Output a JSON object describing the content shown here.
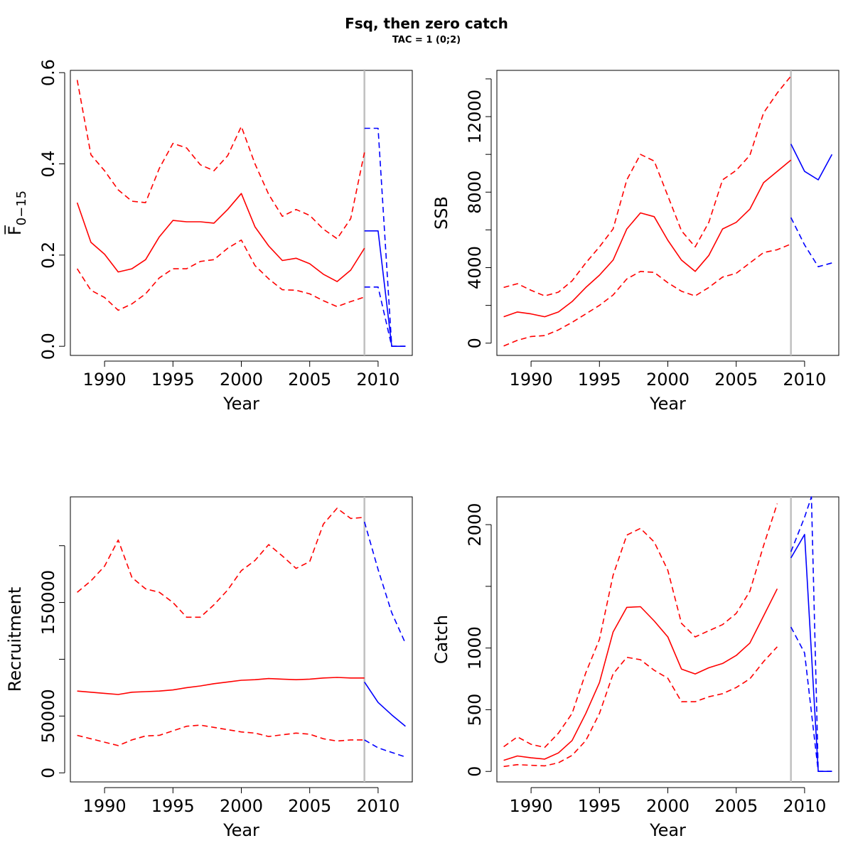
{
  "title": "Fsq, then zero catch",
  "subtitle": "TAC = 1 (0;2)",
  "colors": {
    "hist": "#ff0000",
    "proj": "#0000ff",
    "vline": "#c0c0c0"
  },
  "chart_data": [
    {
      "type": "line",
      "xlabel": "Year",
      "ylabel": "F̅",
      "ylabel_sub": "0−15",
      "xlim": [
        1987.5,
        2012.5
      ],
      "ylim": [
        -0.02,
        0.605
      ],
      "xticks": [
        1990,
        1995,
        2000,
        2005,
        2010
      ],
      "yticks": [
        0.0,
        0.2,
        0.4,
        0.6
      ],
      "ytick_labels": [
        "0.0",
        "0.2",
        "0.4",
        "0.6"
      ],
      "vline_x": 2009,
      "series": [
        {
          "role": "historic-median",
          "style": "solid",
          "color": "hist",
          "x": [
            1988,
            1989,
            1990,
            1991,
            1992,
            1993,
            1994,
            1995,
            1996,
            1997,
            1998,
            1999,
            2000,
            2001,
            2002,
            2003,
            2004,
            2005,
            2006,
            2007,
            2008,
            2009
          ],
          "y": [
            0.315,
            0.228,
            0.202,
            0.163,
            0.17,
            0.19,
            0.24,
            0.276,
            0.273,
            0.273,
            0.27,
            0.3,
            0.335,
            0.262,
            0.22,
            0.188,
            0.193,
            0.181,
            0.158,
            0.142,
            0.167,
            0.215
          ]
        },
        {
          "role": "historic-upper",
          "style": "dashed",
          "color": "hist",
          "x": [
            1988,
            1989,
            1990,
            1991,
            1992,
            1993,
            1994,
            1995,
            1996,
            1997,
            1998,
            1999,
            2000,
            2001,
            2002,
            2003,
            2004,
            2005,
            2006,
            2007,
            2008,
            2009
          ],
          "y": [
            0.584,
            0.42,
            0.385,
            0.343,
            0.318,
            0.315,
            0.39,
            0.445,
            0.435,
            0.398,
            0.385,
            0.418,
            0.482,
            0.4,
            0.333,
            0.285,
            0.3,
            0.287,
            0.257,
            0.236,
            0.28,
            0.425
          ]
        },
        {
          "role": "historic-lower",
          "style": "dashed",
          "color": "hist",
          "x": [
            1988,
            1989,
            1990,
            1991,
            1992,
            1993,
            1994,
            1995,
            1996,
            1997,
            1998,
            1999,
            2000,
            2001,
            2002,
            2003,
            2004,
            2005,
            2006,
            2007,
            2008,
            2009
          ],
          "y": [
            0.17,
            0.123,
            0.107,
            0.079,
            0.093,
            0.115,
            0.15,
            0.17,
            0.17,
            0.186,
            0.19,
            0.215,
            0.233,
            0.177,
            0.148,
            0.124,
            0.123,
            0.115,
            0.1,
            0.087,
            0.098,
            0.108
          ]
        },
        {
          "role": "projection-median",
          "style": "solid",
          "color": "proj",
          "x": [
            2009,
            2010,
            2011,
            2012
          ],
          "y": [
            0.253,
            0.253,
            0.0,
            0.0
          ]
        },
        {
          "role": "projection-upper",
          "style": "dashed",
          "color": "proj",
          "x": [
            2009,
            2010,
            2011,
            2012
          ],
          "y": [
            0.478,
            0.478,
            0.0,
            0.0
          ]
        },
        {
          "role": "projection-lower",
          "style": "dashed",
          "color": "proj",
          "x": [
            2009,
            2010,
            2011,
            2012
          ],
          "y": [
            0.13,
            0.13,
            0.0,
            0.0
          ]
        }
      ]
    },
    {
      "type": "line",
      "xlabel": "Year",
      "ylabel": "SSB",
      "xlim": [
        1987.5,
        2012.5
      ],
      "ylim": [
        -650,
        14450
      ],
      "xticks": [
        1990,
        1995,
        2000,
        2005,
        2010
      ],
      "yticks": [
        0,
        4000,
        8000,
        12000
      ],
      "ytick_labels": [
        "0",
        "4000",
        "8000",
        "12000"
      ],
      "yminor": [
        2000,
        6000,
        10000,
        14000
      ],
      "vline_x": 2009,
      "series": [
        {
          "role": "historic-median",
          "style": "solid",
          "color": "hist",
          "x": [
            1988,
            1989,
            1990,
            1991,
            1992,
            1993,
            1994,
            1995,
            1996,
            1997,
            1998,
            1999,
            2000,
            2001,
            2002,
            2003,
            2004,
            2005,
            2006,
            2007,
            2008,
            2009
          ],
          "y": [
            1400,
            1650,
            1550,
            1400,
            1650,
            2200,
            2950,
            3600,
            4400,
            6050,
            6900,
            6700,
            5450,
            4400,
            3800,
            4650,
            6050,
            6400,
            7100,
            8500,
            9100,
            9700
          ]
        },
        {
          "role": "historic-upper",
          "style": "dashed",
          "color": "hist",
          "x": [
            1988,
            1989,
            1990,
            1991,
            1992,
            1993,
            1994,
            1995,
            1996,
            1997,
            1998,
            1999,
            2000,
            2001,
            2002,
            2003,
            2004,
            2005,
            2006,
            2007,
            2008,
            2009
          ],
          "y": [
            2950,
            3150,
            2800,
            2500,
            2700,
            3300,
            4250,
            5100,
            6050,
            8650,
            10000,
            9650,
            7800,
            5950,
            5100,
            6400,
            8650,
            9150,
            9950,
            12200,
            13250,
            14150
          ]
        },
        {
          "role": "historic-lower",
          "style": "dashed",
          "color": "hist",
          "x": [
            1988,
            1989,
            1990,
            1991,
            1992,
            1993,
            1994,
            1995,
            1996,
            1997,
            1998,
            1999,
            2000,
            2001,
            2002,
            2003,
            2004,
            2005,
            2006,
            2007,
            2008,
            2009
          ],
          "y": [
            -150,
            150,
            350,
            400,
            700,
            1100,
            1550,
            2000,
            2550,
            3400,
            3800,
            3750,
            3200,
            2750,
            2500,
            2950,
            3500,
            3700,
            4250,
            4800,
            4950,
            5250
          ]
        },
        {
          "role": "projection-median",
          "style": "solid",
          "color": "proj",
          "x": [
            2009,
            2010,
            2011,
            2012
          ],
          "y": [
            10550,
            9100,
            8650,
            10000
          ]
        },
        {
          "role": "projection-lower",
          "style": "dashed",
          "color": "proj",
          "x": [
            2009,
            2010,
            2011,
            2012
          ],
          "y": [
            6650,
            5200,
            4050,
            4250
          ]
        }
      ]
    },
    {
      "type": "line",
      "xlabel": "Year",
      "ylabel": "Recruitment",
      "xlim": [
        1987.5,
        2012.5
      ],
      "ylim": [
        -8000,
        243000
      ],
      "xticks": [
        1990,
        1995,
        2000,
        2005,
        2010
      ],
      "yticks": [
        0,
        50000,
        150000
      ],
      "ytick_labels": [
        "0",
        "50000",
        "150000"
      ],
      "yminor": [
        100000,
        200000
      ],
      "vline_x": 2009,
      "series": [
        {
          "role": "historic-median",
          "style": "solid",
          "color": "hist",
          "x": [
            1988,
            1989,
            1990,
            1991,
            1992,
            1993,
            1994,
            1995,
            1996,
            1997,
            1998,
            1999,
            2000,
            2001,
            2002,
            2003,
            2004,
            2005,
            2006,
            2007,
            2008,
            2009
          ],
          "y": [
            72000,
            71000,
            70000,
            69000,
            71000,
            71500,
            72000,
            73000,
            75000,
            76500,
            78500,
            80000,
            81500,
            82000,
            83000,
            82500,
            82000,
            82500,
            83500,
            84000,
            83500,
            83500
          ]
        },
        {
          "role": "historic-upper",
          "style": "dashed",
          "color": "hist",
          "x": [
            1988,
            1989,
            1990,
            1991,
            1992,
            1993,
            1994,
            1995,
            1996,
            1997,
            1998,
            1999,
            2000,
            2001,
            2002,
            2003,
            2004,
            2005,
            2006,
            2007,
            2008,
            2009
          ],
          "y": [
            159000,
            169000,
            182000,
            205000,
            172000,
            162000,
            159000,
            150000,
            137000,
            137000,
            148000,
            161000,
            178000,
            187000,
            201000,
            191000,
            180000,
            186000,
            219000,
            233000,
            224000,
            225000
          ]
        },
        {
          "role": "historic-lower",
          "style": "dashed",
          "color": "hist",
          "x": [
            1988,
            1989,
            1990,
            1991,
            1992,
            1993,
            1994,
            1995,
            1996,
            1997,
            1998,
            1999,
            2000,
            2001,
            2002,
            2003,
            2004,
            2005,
            2006,
            2007,
            2008,
            2009
          ],
          "y": [
            33000,
            30000,
            27000,
            24000,
            29000,
            32500,
            33000,
            37000,
            41000,
            42000,
            40000,
            38000,
            36000,
            35000,
            32000,
            33500,
            35000,
            34000,
            30000,
            28000,
            29000,
            29000
          ]
        },
        {
          "role": "projection-median",
          "style": "solid",
          "color": "proj",
          "x": [
            2009,
            2010,
            2011,
            2012
          ],
          "y": [
            80000,
            62000,
            51000,
            41000
          ]
        },
        {
          "role": "projection-upper",
          "style": "dashed",
          "color": "proj",
          "x": [
            2009,
            2010,
            2011,
            2012
          ],
          "y": [
            221000,
            179000,
            141000,
            114000
          ]
        },
        {
          "role": "projection-lower",
          "style": "dashed",
          "color": "proj",
          "x": [
            2009,
            2010,
            2011,
            2012
          ],
          "y": [
            29000,
            22000,
            18000,
            14000
          ]
        }
      ]
    },
    {
      "type": "line",
      "xlabel": "Year",
      "ylabel": "Catch",
      "xlim": [
        1987.5,
        2012.5
      ],
      "ylim": [
        -85,
        2225
      ],
      "xticks": [
        1990,
        1995,
        2000,
        2005,
        2010
      ],
      "yticks": [
        0,
        500,
        1000,
        2000
      ],
      "ytick_labels": [
        "0",
        "500",
        "1000",
        "2000"
      ],
      "yminor": [
        1500
      ],
      "vline_x": 2009,
      "series": [
        {
          "role": "historic-median",
          "style": "solid",
          "color": "hist",
          "x": [
            1988,
            1989,
            1990,
            1991,
            1992,
            1993,
            1994,
            1995,
            1996,
            1997,
            1998,
            1999,
            2000,
            2001,
            2002,
            2003,
            2004,
            2005,
            2006,
            2007,
            2008
          ],
          "y": [
            90,
            125,
            110,
            100,
            150,
            250,
            470,
            720,
            1130,
            1330,
            1335,
            1220,
            1090,
            830,
            790,
            840,
            875,
            940,
            1040,
            1260,
            1480
          ]
        },
        {
          "role": "historic-upper",
          "style": "dashed",
          "color": "hist",
          "x": [
            1988,
            1989,
            1990,
            1991,
            1992,
            1993,
            1994,
            1995,
            1996,
            1997,
            1998,
            1999,
            2000,
            2001,
            2002,
            2003,
            2004,
            2005,
            2006,
            2007,
            2008
          ],
          "y": [
            200,
            280,
            220,
            195,
            310,
            470,
            800,
            1070,
            1590,
            1915,
            1970,
            1860,
            1630,
            1200,
            1090,
            1140,
            1190,
            1280,
            1460,
            1830,
            2170
          ]
        },
        {
          "role": "historic-lower",
          "style": "dashed",
          "color": "hist",
          "x": [
            1988,
            1989,
            1990,
            1991,
            1992,
            1993,
            1994,
            1995,
            1996,
            1997,
            1998,
            1999,
            2000,
            2001,
            2002,
            2003,
            2004,
            2005,
            2006,
            2007,
            2008
          ],
          "y": [
            40,
            55,
            50,
            45,
            70,
            130,
            250,
            470,
            790,
            925,
            905,
            820,
            755,
            565,
            565,
            605,
            630,
            680,
            750,
            890,
            1010
          ]
        },
        {
          "role": "projection-median",
          "style": "solid",
          "color": "proj",
          "x": [
            2009,
            2010,
            2011,
            2012
          ],
          "y": [
            1730,
            1920,
            0,
            0
          ]
        },
        {
          "role": "projection-upper",
          "style": "dashed",
          "color": "proj",
          "x": [
            2009,
            2010,
            2010.5,
            2011,
            2012
          ],
          "y": [
            1780,
            2060,
            2225,
            0,
            0
          ]
        },
        {
          "role": "projection-lower",
          "style": "dashed",
          "color": "proj",
          "x": [
            2009,
            2010,
            2011,
            2012
          ],
          "y": [
            1170,
            960,
            0,
            0
          ]
        }
      ]
    }
  ]
}
